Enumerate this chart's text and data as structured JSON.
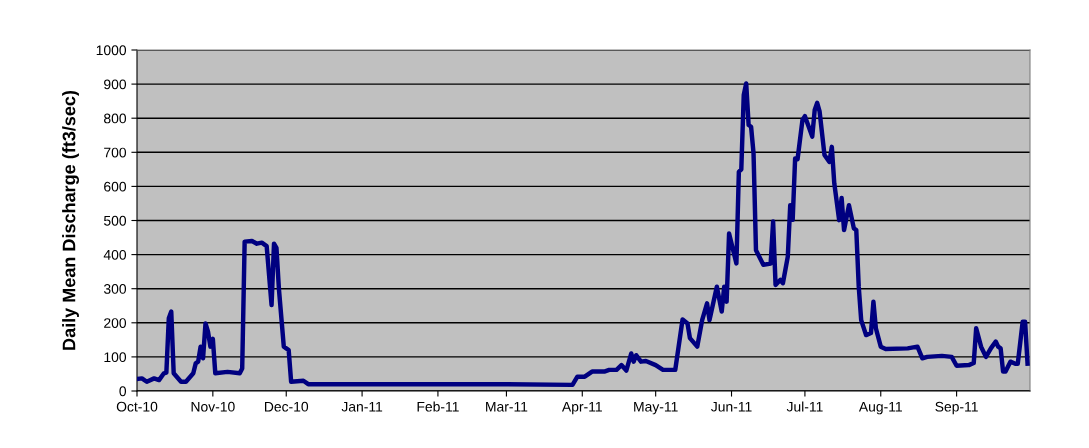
{
  "chart_data": {
    "type": "line",
    "ylabel": "Daily Mean Discharge (ft3/sec)",
    "x": [
      "2010-10-01",
      "2010-10-03",
      "2010-10-05",
      "2010-10-08",
      "2010-10-10",
      "2010-10-12",
      "2010-10-13",
      "2010-10-14",
      "2010-10-15",
      "2010-10-16",
      "2010-10-19",
      "2010-10-21",
      "2010-10-24",
      "2010-10-25",
      "2010-10-26",
      "2010-10-27",
      "2010-10-28",
      "2010-10-29",
      "2010-10-30",
      "2010-10-31",
      "2010-11-01",
      "2010-11-02",
      "2010-11-07",
      "2010-11-12",
      "2010-11-13",
      "2010-11-14",
      "2010-11-17",
      "2010-11-19",
      "2010-11-21",
      "2010-11-23",
      "2010-11-25",
      "2010-11-26",
      "2010-11-27",
      "2010-11-28",
      "2010-11-30",
      "2010-12-02",
      "2010-12-03",
      "2010-12-08",
      "2010-12-10",
      "2011-01-01",
      "2011-02-01",
      "2011-03-01",
      "2011-03-28",
      "2011-03-30",
      "2011-04-02",
      "2011-04-05",
      "2011-04-10",
      "2011-04-12",
      "2011-04-15",
      "2011-04-17",
      "2011-04-19",
      "2011-04-21",
      "2011-04-22",
      "2011-04-23",
      "2011-04-25",
      "2011-04-27",
      "2011-05-01",
      "2011-05-04",
      "2011-05-09",
      "2011-05-12",
      "2011-05-14",
      "2011-05-15",
      "2011-05-18",
      "2011-05-20",
      "2011-05-22",
      "2011-05-23",
      "2011-05-26",
      "2011-05-28",
      "2011-05-29",
      "2011-05-30",
      "2011-05-31",
      "2011-06-03",
      "2011-06-04",
      "2011-06-05",
      "2011-06-06",
      "2011-06-07",
      "2011-06-08",
      "2011-06-09",
      "2011-06-10",
      "2011-06-11",
      "2011-06-12",
      "2011-06-14",
      "2011-06-17",
      "2011-06-18",
      "2011-06-19",
      "2011-06-21",
      "2011-06-22",
      "2011-06-24",
      "2011-06-25",
      "2011-06-26",
      "2011-06-27",
      "2011-06-28",
      "2011-06-30",
      "2011-07-01",
      "2011-07-04",
      "2011-07-05",
      "2011-07-06",
      "2011-07-07",
      "2011-07-09",
      "2011-07-11",
      "2011-07-12",
      "2011-07-13",
      "2011-07-15",
      "2011-07-16",
      "2011-07-17",
      "2011-07-19",
      "2011-07-21",
      "2011-07-22",
      "2011-07-23",
      "2011-07-24",
      "2011-07-26",
      "2011-07-28",
      "2011-07-29",
      "2011-07-30",
      "2011-08-01",
      "2011-08-03",
      "2011-08-12",
      "2011-08-16",
      "2011-08-18",
      "2011-08-20",
      "2011-08-26",
      "2011-08-30",
      "2011-09-01",
      "2011-09-06",
      "2011-09-08",
      "2011-09-09",
      "2011-09-11",
      "2011-09-13",
      "2011-09-15",
      "2011-09-17",
      "2011-09-18",
      "2011-09-19",
      "2011-09-20",
      "2011-09-21",
      "2011-09-23",
      "2011-09-25",
      "2011-09-26",
      "2011-09-28",
      "2011-09-29",
      "2011-09-30"
    ],
    "series": [
      {
        "color": "#000080",
        "values": [
          35,
          37,
          27,
          37,
          32,
          52,
          54,
          213,
          233,
          52,
          27,
          27,
          52,
          81,
          86,
          130,
          96,
          198,
          175,
          130,
          153,
          52,
          56,
          52,
          66,
          438,
          440,
          432,
          435,
          425,
          252,
          432,
          420,
          300,
          130,
          120,
          27,
          30,
          20,
          20,
          20,
          20,
          18,
          42,
          42,
          57,
          57,
          62,
          62,
          76,
          60,
          110,
          86,
          105,
          86,
          88,
          76,
          62,
          62,
          210,
          198,
          155,
          130,
          208,
          257,
          208,
          306,
          233,
          306,
          262,
          462,
          374,
          643,
          650,
          868,
          902,
          780,
          775,
          697,
          413,
          399,
          370,
          374,
          497,
          311,
          326,
          316,
          394,
          545,
          502,
          682,
          680,
          795,
          806,
          746,
          824,
          845,
          820,
          692,
          672,
          716,
          609,
          501,
          566,
          472,
          545,
          477,
          472,
          306,
          208,
          164,
          170,
          262,
          184,
          130,
          123,
          125,
          130,
          96,
          100,
          103,
          100,
          74,
          76,
          82,
          184,
          130,
          100,
          125,
          145,
          130,
          125,
          57,
          57,
          86,
          80,
          80,
          203,
          203,
          80
        ]
      }
    ],
    "xlim": [
      "2010-10-01",
      "2011-10-01"
    ],
    "xticks": [
      {
        "value": "2010-10-01",
        "label": "Oct-10"
      },
      {
        "value": "2010-11-01",
        "label": "Nov-10"
      },
      {
        "value": "2010-12-01",
        "label": "Dec-10"
      },
      {
        "value": "2011-01-01",
        "label": "Jan-11"
      },
      {
        "value": "2011-02-01",
        "label": "Feb-11"
      },
      {
        "value": "2011-03-01",
        "label": "Mar-11"
      },
      {
        "value": "2011-04-01",
        "label": "Apr-11"
      },
      {
        "value": "2011-05-01",
        "label": "May-11"
      },
      {
        "value": "2011-06-01",
        "label": "Jun-11"
      },
      {
        "value": "2011-07-01",
        "label": "Jul-11"
      },
      {
        "value": "2011-08-01",
        "label": "Aug-11"
      },
      {
        "value": "2011-09-01",
        "label": "Sep-11"
      }
    ],
    "ylim": [
      0,
      1000
    ],
    "yticks": [
      0,
      100,
      200,
      300,
      400,
      500,
      600,
      700,
      800,
      900,
      1000
    ],
    "grid": "y",
    "marker": "none",
    "line_style": "solid",
    "legend": false
  }
}
